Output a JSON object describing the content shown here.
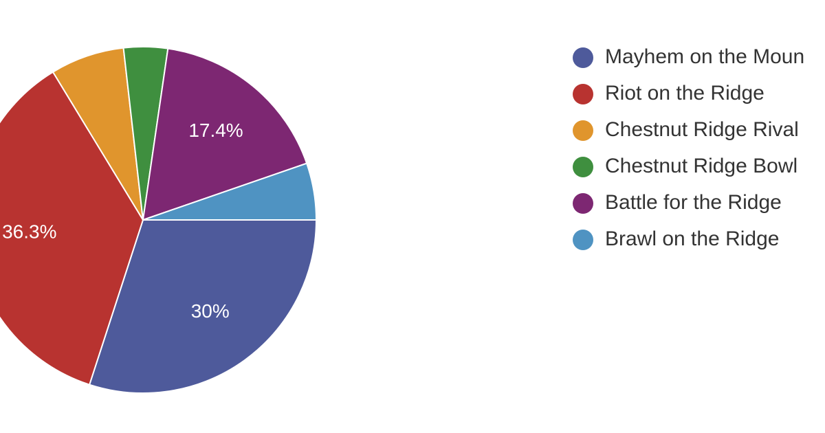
{
  "chart_data": {
    "type": "pie",
    "categories": [
      "Mayhem on the Moun",
      "Riot on the Ridge",
      "Chestnut Ridge Rival",
      "Chestnut Ridge Bowl",
      "Battle for the Ridge",
      "Brawl on the Ridge"
    ],
    "values": [
      30,
      36.3,
      6.9,
      4.1,
      17.4,
      5.3
    ],
    "value_labels": [
      "30%",
      "36.3%",
      null,
      null,
      "17.4%",
      null
    ],
    "colors": [
      "#4e5a9b",
      "#b83330",
      "#e0952d",
      "#3f8f3f",
      "#7d2772",
      "#4f93c2"
    ]
  }
}
